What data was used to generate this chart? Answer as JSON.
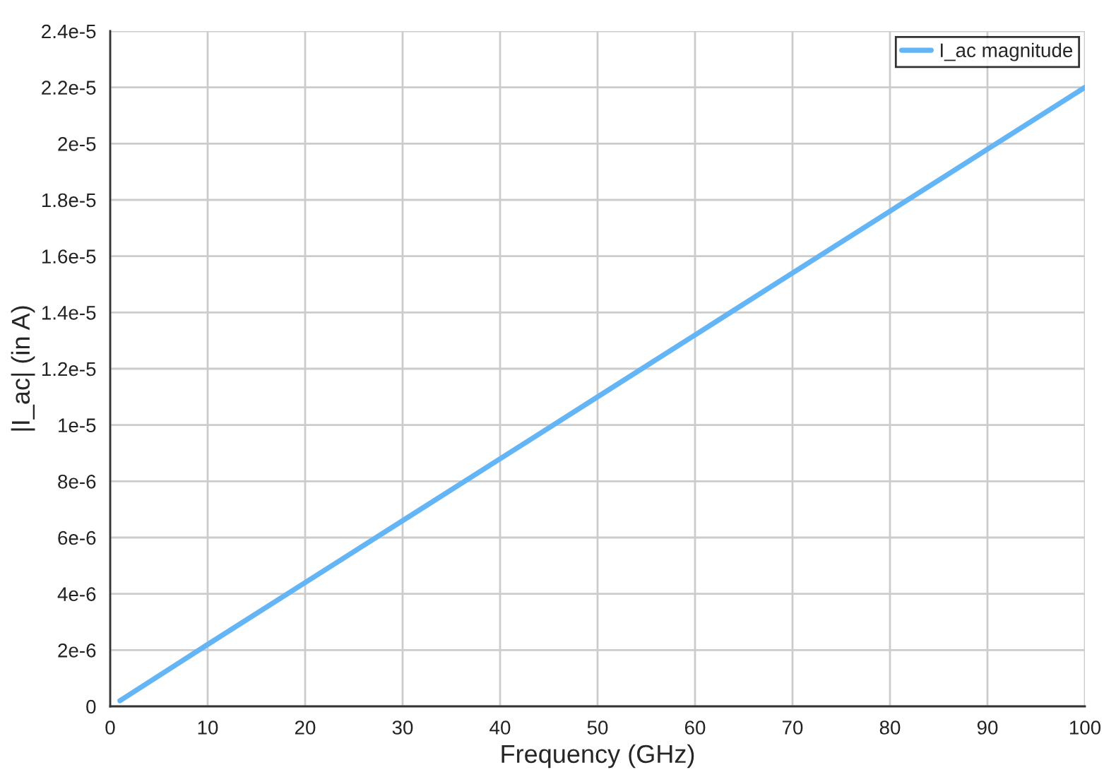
{
  "chart_data": {
    "type": "line",
    "xlabel": "Frequency (GHz)",
    "ylabel": "|I_ac| (in A)",
    "x": [
      1,
      10,
      20,
      30,
      40,
      50,
      60,
      70,
      80,
      90,
      100
    ],
    "series": [
      {
        "name": "I_ac magnitude",
        "color": "#64b5f6",
        "values": [
          2e-07,
          2.2e-06,
          4.4e-06,
          6.6e-06,
          8.8e-06,
          1.1e-05,
          1.32e-05,
          1.54e-05,
          1.76e-05,
          1.98e-05,
          2.2e-05
        ]
      }
    ],
    "xlim": [
      0,
      100
    ],
    "xticks": [
      0,
      10,
      20,
      30,
      40,
      50,
      60,
      70,
      80,
      90,
      100
    ],
    "ylim": [
      0,
      2.4e-05
    ],
    "yticks": [
      0,
      {
        "value": 2e-06,
        "label": "2e-6"
      },
      {
        "value": 4e-06,
        "label": "4e-6"
      },
      {
        "value": 6e-06,
        "label": "6e-6"
      },
      {
        "value": 8e-06,
        "label": "8e-6"
      },
      {
        "value": 1e-05,
        "label": "1e-5"
      },
      {
        "value": 1.2e-05,
        "label": "1.2e-5"
      },
      {
        "value": 1.4e-05,
        "label": "1.4e-5"
      },
      {
        "value": 1.6e-05,
        "label": "1.6e-5"
      },
      {
        "value": 1.8e-05,
        "label": "1.8e-5"
      },
      {
        "value": 2e-05,
        "label": "2e-5"
      },
      {
        "value": 2.2e-05,
        "label": "2.2e-5"
      },
      {
        "value": 2.4e-05,
        "label": "2.4e-5"
      }
    ],
    "grid": true,
    "legend": "top right",
    "marker": "none",
    "line_style": "solid"
  }
}
